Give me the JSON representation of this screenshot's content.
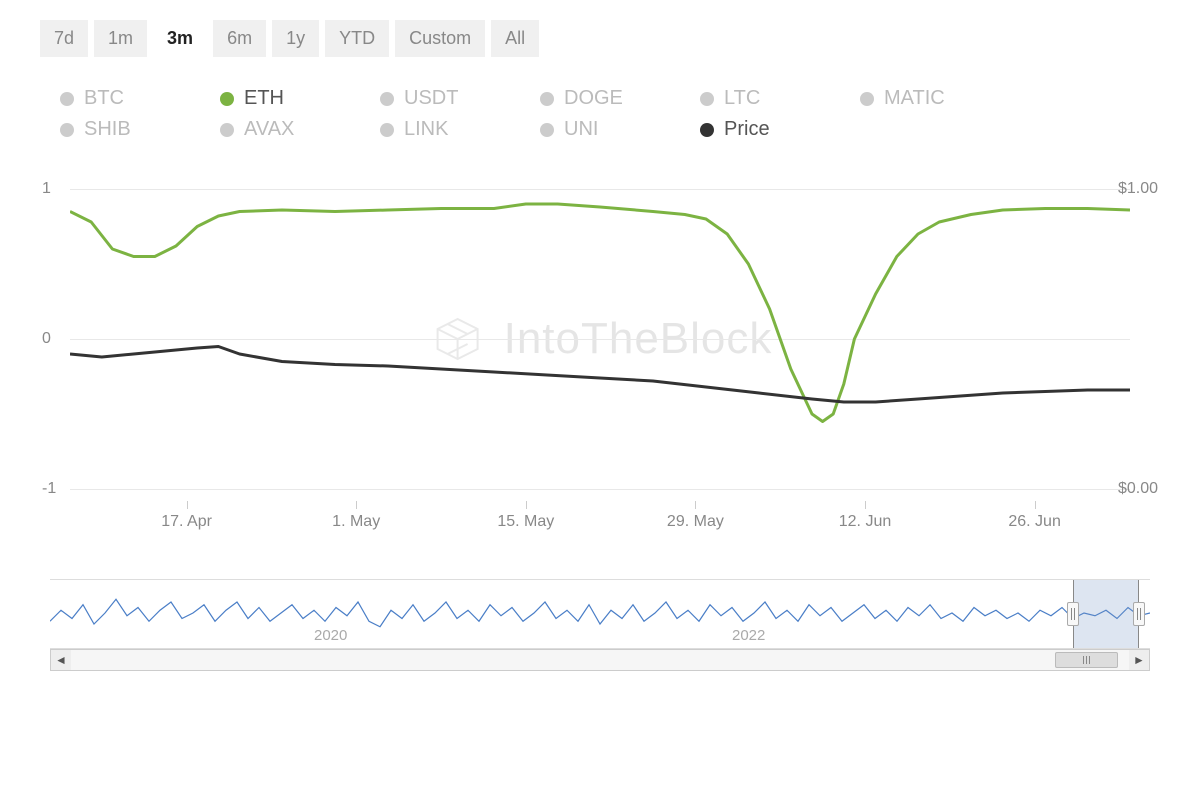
{
  "time_tabs": {
    "items": [
      "7d",
      "1m",
      "3m",
      "6m",
      "1y",
      "YTD",
      "Custom",
      "All"
    ],
    "active_index": 2
  },
  "legend": {
    "items": [
      {
        "label": "BTC",
        "color": "#cccccc",
        "active": false
      },
      {
        "label": "ETH",
        "color": "#7cb342",
        "active": true
      },
      {
        "label": "USDT",
        "color": "#cccccc",
        "active": false
      },
      {
        "label": "DOGE",
        "color": "#cccccc",
        "active": false
      },
      {
        "label": "LTC",
        "color": "#cccccc",
        "active": false
      },
      {
        "label": "MATIC",
        "color": "#cccccc",
        "active": false
      },
      {
        "label": "SHIB",
        "color": "#cccccc",
        "active": false
      },
      {
        "label": "AVAX",
        "color": "#cccccc",
        "active": false
      },
      {
        "label": "LINK",
        "color": "#cccccc",
        "active": false
      },
      {
        "label": "UNI",
        "color": "#cccccc",
        "active": false
      },
      {
        "label": "Price",
        "color": "#333333",
        "active": true
      }
    ]
  },
  "chart": {
    "type": "line",
    "background_color": "#ffffff",
    "grid_color": "#e8e8e8",
    "watermark_text": "IntoTheBlock",
    "y_left": {
      "min": -1,
      "max": 1,
      "ticks": [
        1,
        0,
        -1
      ],
      "labels": [
        "1",
        "0",
        "-1"
      ]
    },
    "y_right": {
      "min": 0,
      "max": 1,
      "ticks": [
        1,
        0
      ],
      "labels": [
        "$1.00",
        "$0.00"
      ]
    },
    "x_labels": [
      "17. Apr",
      "1. May",
      "15. May",
      "29. May",
      "12. Jun",
      "26. Jun"
    ],
    "x_positions_pct": [
      11,
      27,
      43,
      59,
      75,
      91
    ],
    "series": [
      {
        "name": "ETH",
        "color": "#7cb342",
        "width": 3,
        "axis": "left",
        "points": [
          [
            0,
            0.85
          ],
          [
            2,
            0.78
          ],
          [
            4,
            0.6
          ],
          [
            6,
            0.55
          ],
          [
            8,
            0.55
          ],
          [
            10,
            0.62
          ],
          [
            12,
            0.75
          ],
          [
            14,
            0.82
          ],
          [
            16,
            0.85
          ],
          [
            20,
            0.86
          ],
          [
            25,
            0.85
          ],
          [
            30,
            0.86
          ],
          [
            35,
            0.87
          ],
          [
            40,
            0.87
          ],
          [
            43,
            0.9
          ],
          [
            46,
            0.9
          ],
          [
            50,
            0.88
          ],
          [
            55,
            0.85
          ],
          [
            58,
            0.83
          ],
          [
            60,
            0.8
          ],
          [
            62,
            0.7
          ],
          [
            64,
            0.5
          ],
          [
            66,
            0.2
          ],
          [
            68,
            -0.2
          ],
          [
            70,
            -0.5
          ],
          [
            71,
            -0.55
          ],
          [
            72,
            -0.5
          ],
          [
            73,
            -0.3
          ],
          [
            74,
            0.0
          ],
          [
            76,
            0.3
          ],
          [
            78,
            0.55
          ],
          [
            80,
            0.7
          ],
          [
            82,
            0.78
          ],
          [
            85,
            0.83
          ],
          [
            88,
            0.86
          ],
          [
            92,
            0.87
          ],
          [
            96,
            0.87
          ],
          [
            100,
            0.86
          ]
        ]
      },
      {
        "name": "Price",
        "color": "#333333",
        "width": 3,
        "axis": "left",
        "points": [
          [
            0,
            -0.1
          ],
          [
            3,
            -0.12
          ],
          [
            6,
            -0.1
          ],
          [
            9,
            -0.08
          ],
          [
            12,
            -0.06
          ],
          [
            14,
            -0.05
          ],
          [
            16,
            -0.1
          ],
          [
            20,
            -0.15
          ],
          [
            25,
            -0.17
          ],
          [
            30,
            -0.18
          ],
          [
            35,
            -0.2
          ],
          [
            40,
            -0.22
          ],
          [
            45,
            -0.24
          ],
          [
            50,
            -0.26
          ],
          [
            55,
            -0.28
          ],
          [
            60,
            -0.32
          ],
          [
            65,
            -0.36
          ],
          [
            70,
            -0.4
          ],
          [
            73,
            -0.42
          ],
          [
            76,
            -0.42
          ],
          [
            80,
            -0.4
          ],
          [
            84,
            -0.38
          ],
          [
            88,
            -0.36
          ],
          [
            92,
            -0.35
          ],
          [
            96,
            -0.34
          ],
          [
            100,
            -0.34
          ]
        ]
      }
    ]
  },
  "navigator": {
    "line_color": "#4a7ec7",
    "line_width": 1.2,
    "labels": [
      {
        "text": "2020",
        "pos_pct": 24
      },
      {
        "text": "2022",
        "pos_pct": 62
      }
    ],
    "selection": {
      "left_pct": 93,
      "right_pct": 99
    },
    "points": [
      [
        0,
        60
      ],
      [
        1,
        40
      ],
      [
        2,
        55
      ],
      [
        3,
        30
      ],
      [
        4,
        65
      ],
      [
        5,
        45
      ],
      [
        6,
        20
      ],
      [
        7,
        50
      ],
      [
        8,
        35
      ],
      [
        9,
        60
      ],
      [
        10,
        40
      ],
      [
        11,
        25
      ],
      [
        12,
        55
      ],
      [
        13,
        45
      ],
      [
        14,
        30
      ],
      [
        15,
        60
      ],
      [
        16,
        40
      ],
      [
        17,
        25
      ],
      [
        18,
        55
      ],
      [
        19,
        35
      ],
      [
        20,
        60
      ],
      [
        21,
        45
      ],
      [
        22,
        30
      ],
      [
        23,
        55
      ],
      [
        24,
        40
      ],
      [
        25,
        60
      ],
      [
        26,
        35
      ],
      [
        27,
        50
      ],
      [
        28,
        25
      ],
      [
        29,
        60
      ],
      [
        30,
        70
      ],
      [
        31,
        40
      ],
      [
        32,
        55
      ],
      [
        33,
        30
      ],
      [
        34,
        60
      ],
      [
        35,
        45
      ],
      [
        36,
        25
      ],
      [
        37,
        55
      ],
      [
        38,
        40
      ],
      [
        39,
        60
      ],
      [
        40,
        30
      ],
      [
        41,
        50
      ],
      [
        42,
        35
      ],
      [
        43,
        60
      ],
      [
        44,
        45
      ],
      [
        45,
        25
      ],
      [
        46,
        55
      ],
      [
        47,
        40
      ],
      [
        48,
        60
      ],
      [
        49,
        30
      ],
      [
        50,
        65
      ],
      [
        51,
        40
      ],
      [
        52,
        55
      ],
      [
        53,
        30
      ],
      [
        54,
        60
      ],
      [
        55,
        45
      ],
      [
        56,
        25
      ],
      [
        57,
        55
      ],
      [
        58,
        40
      ],
      [
        59,
        60
      ],
      [
        60,
        30
      ],
      [
        61,
        50
      ],
      [
        62,
        35
      ],
      [
        63,
        60
      ],
      [
        64,
        45
      ],
      [
        65,
        25
      ],
      [
        66,
        55
      ],
      [
        67,
        40
      ],
      [
        68,
        60
      ],
      [
        69,
        30
      ],
      [
        70,
        50
      ],
      [
        71,
        35
      ],
      [
        72,
        60
      ],
      [
        73,
        45
      ],
      [
        74,
        30
      ],
      [
        75,
        55
      ],
      [
        76,
        40
      ],
      [
        77,
        60
      ],
      [
        78,
        35
      ],
      [
        79,
        50
      ],
      [
        80,
        30
      ],
      [
        81,
        55
      ],
      [
        82,
        45
      ],
      [
        83,
        60
      ],
      [
        84,
        35
      ],
      [
        85,
        50
      ],
      [
        86,
        40
      ],
      [
        87,
        55
      ],
      [
        88,
        45
      ],
      [
        89,
        60
      ],
      [
        90,
        40
      ],
      [
        91,
        50
      ],
      [
        92,
        35
      ],
      [
        93,
        55
      ],
      [
        94,
        45
      ],
      [
        95,
        50
      ],
      [
        96,
        40
      ],
      [
        97,
        55
      ],
      [
        98,
        35
      ],
      [
        99,
        50
      ],
      [
        100,
        45
      ]
    ]
  },
  "scrollbar": {
    "thumb_left_pct": 93,
    "thumb_width_pct": 6
  }
}
